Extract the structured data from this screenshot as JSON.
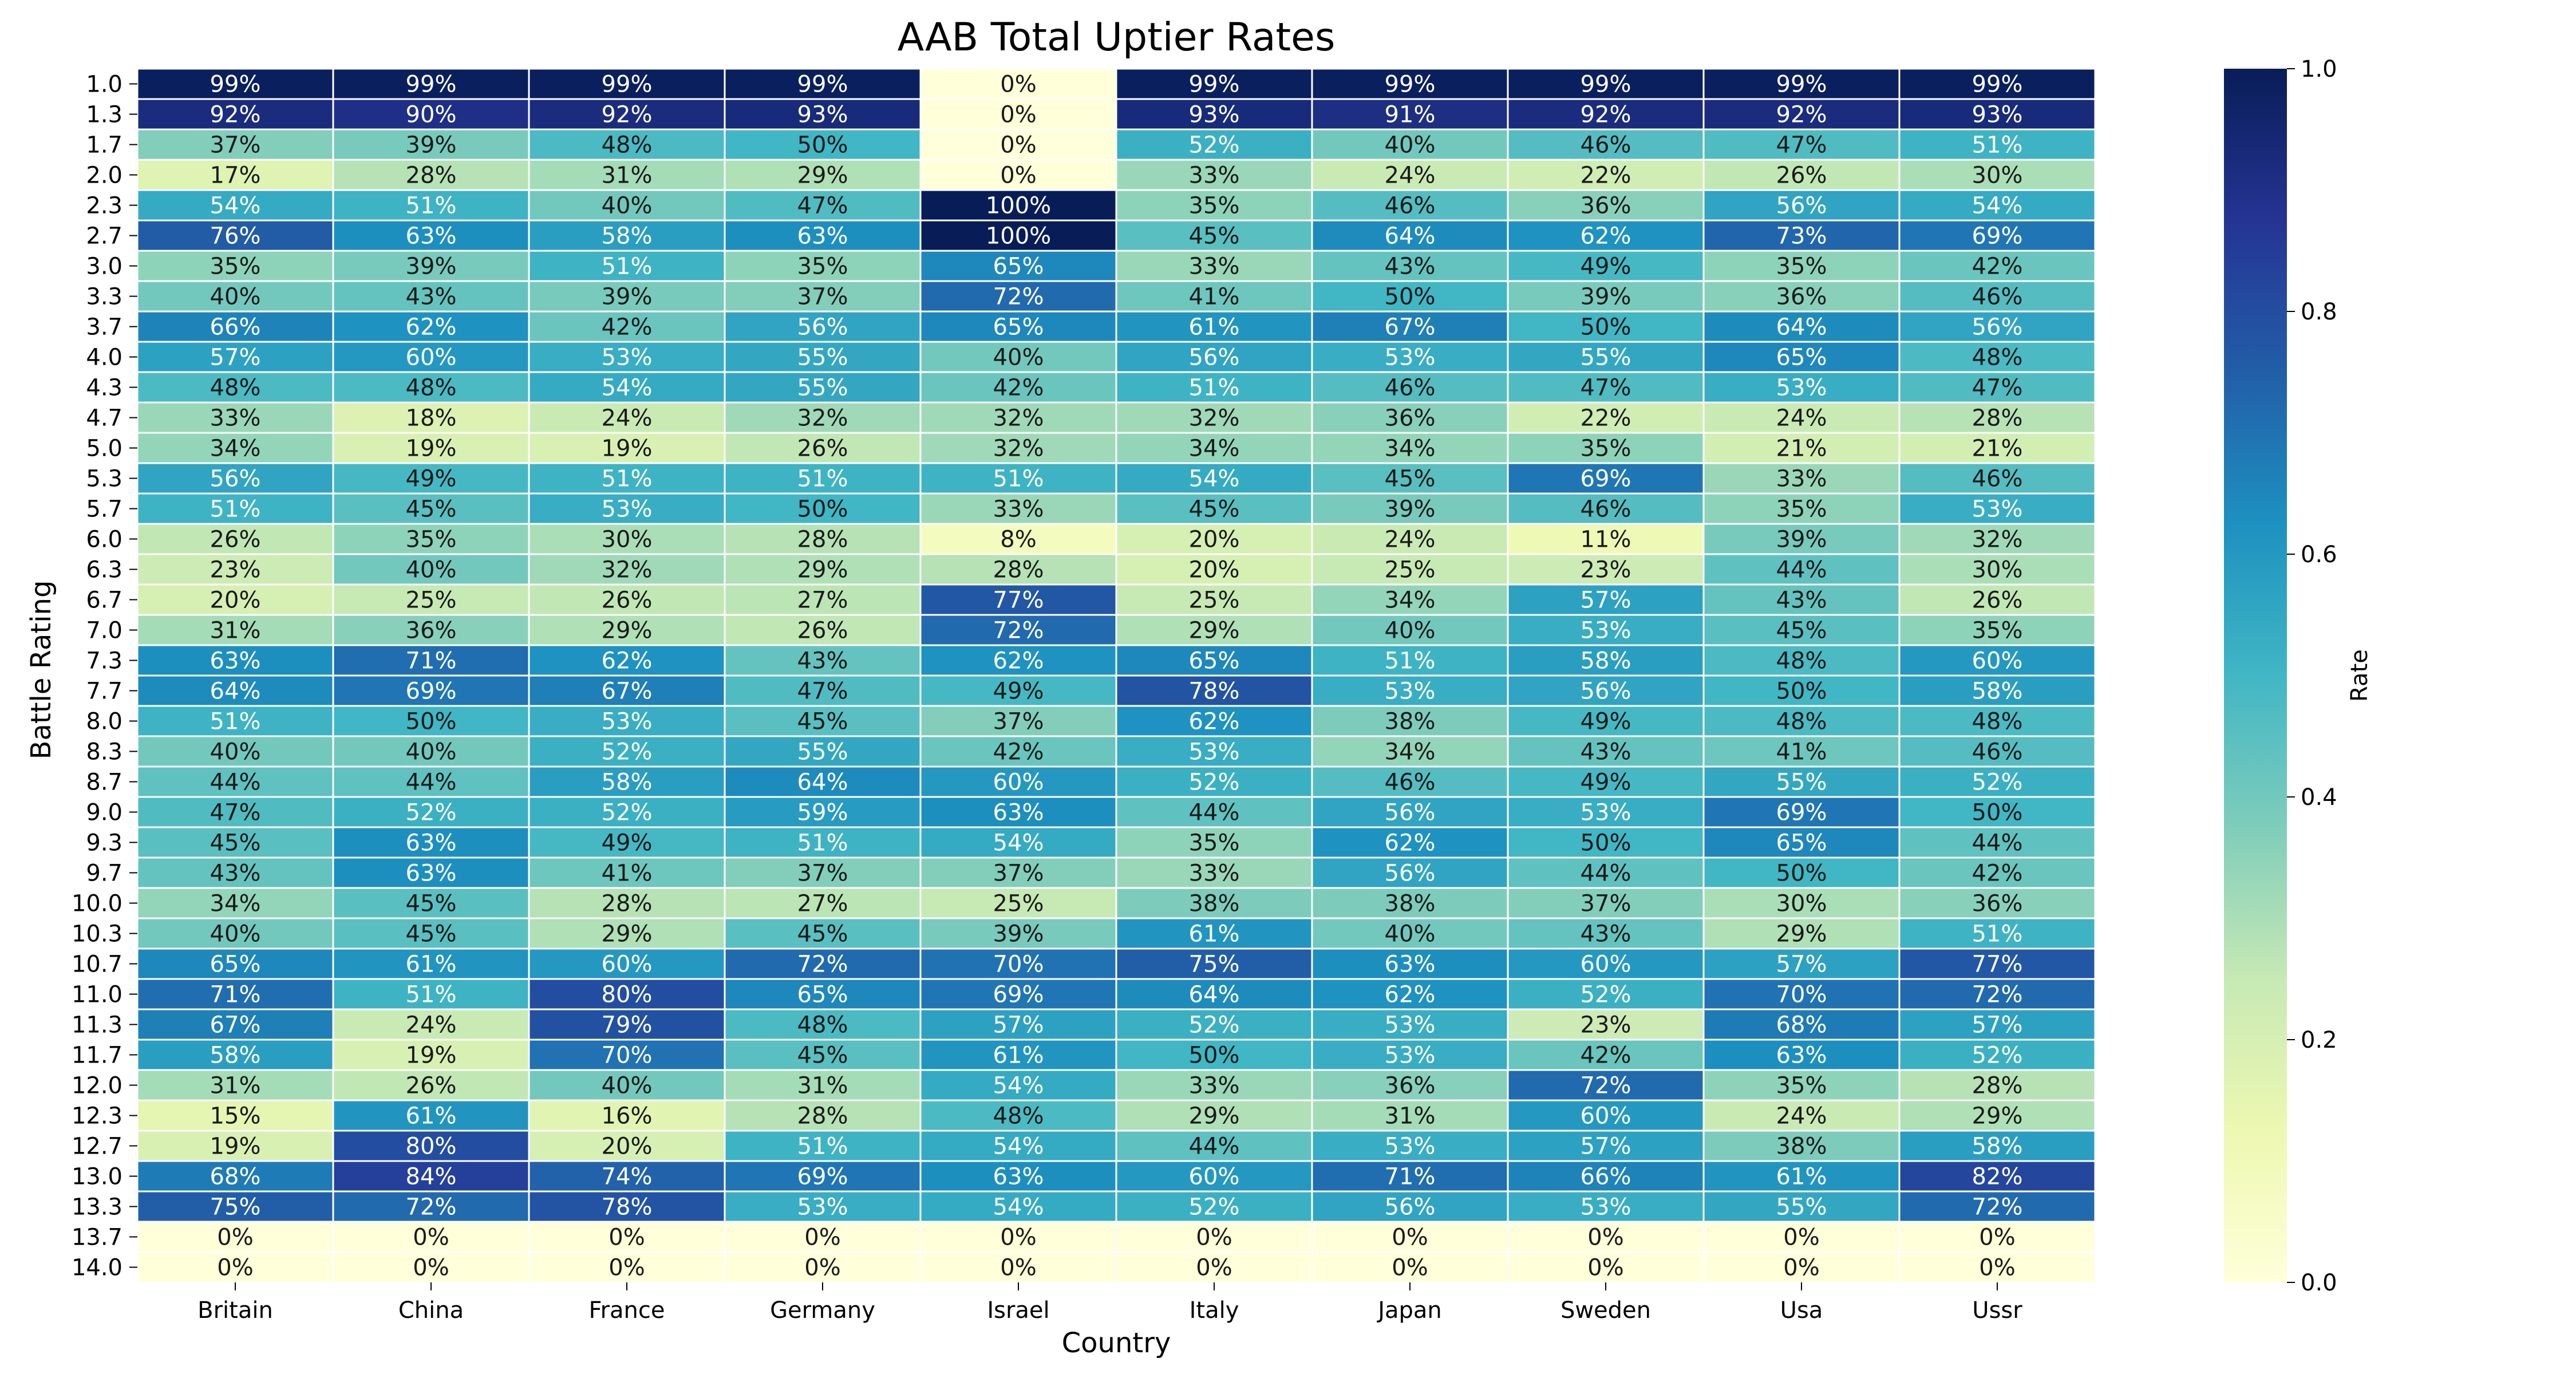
{
  "chart_data": {
    "type": "heatmap",
    "title": "AAB Total Uptier Rates",
    "xlabel": "Country",
    "ylabel": "Battle Rating",
    "colorbar_label": "Rate",
    "colorbar_range": [
      0.0,
      1.0
    ],
    "colorbar_ticks": [
      "0.0",
      "0.2",
      "0.4",
      "0.6",
      "0.8",
      "1.0"
    ],
    "colormap": "YlGnBu",
    "columns": [
      "Britain",
      "China",
      "France",
      "Germany",
      "Israel",
      "Italy",
      "Japan",
      "Sweden",
      "Usa",
      "Ussr"
    ],
    "rows": [
      "1.0",
      "1.3",
      "1.7",
      "2.0",
      "2.3",
      "2.7",
      "3.0",
      "3.3",
      "3.7",
      "4.0",
      "4.3",
      "4.7",
      "5.0",
      "5.3",
      "5.7",
      "6.0",
      "6.3",
      "6.7",
      "7.0",
      "7.3",
      "7.7",
      "8.0",
      "8.3",
      "8.7",
      "9.0",
      "9.3",
      "9.7",
      "10.0",
      "10.3",
      "10.7",
      "11.0",
      "11.3",
      "11.7",
      "12.0",
      "12.3",
      "12.7",
      "13.0",
      "13.3",
      "13.7",
      "14.0"
    ],
    "values": [
      [
        99,
        99,
        99,
        99,
        0,
        99,
        99,
        99,
        99,
        99
      ],
      [
        92,
        90,
        92,
        93,
        0,
        93,
        91,
        92,
        92,
        93
      ],
      [
        37,
        39,
        48,
        50,
        0,
        52,
        40,
        46,
        47,
        51
      ],
      [
        17,
        28,
        31,
        29,
        0,
        33,
        24,
        22,
        26,
        30
      ],
      [
        54,
        51,
        40,
        47,
        100,
        35,
        46,
        36,
        56,
        54
      ],
      [
        76,
        63,
        58,
        63,
        100,
        45,
        64,
        62,
        73,
        69
      ],
      [
        35,
        39,
        51,
        35,
        65,
        33,
        43,
        49,
        35,
        42
      ],
      [
        40,
        43,
        39,
        37,
        72,
        41,
        50,
        39,
        36,
        46
      ],
      [
        66,
        62,
        42,
        56,
        65,
        61,
        67,
        50,
        64,
        56
      ],
      [
        57,
        60,
        53,
        55,
        40,
        56,
        53,
        55,
        65,
        48
      ],
      [
        48,
        48,
        54,
        55,
        42,
        51,
        46,
        47,
        53,
        47
      ],
      [
        33,
        18,
        24,
        32,
        32,
        32,
        36,
        22,
        24,
        28
      ],
      [
        34,
        19,
        19,
        26,
        32,
        34,
        34,
        35,
        21,
        21
      ],
      [
        56,
        49,
        51,
        51,
        51,
        54,
        45,
        69,
        33,
        46
      ],
      [
        51,
        45,
        53,
        50,
        33,
        45,
        39,
        46,
        35,
        53
      ],
      [
        26,
        35,
        30,
        28,
        8,
        20,
        24,
        11,
        39,
        32
      ],
      [
        23,
        40,
        32,
        29,
        28,
        20,
        25,
        23,
        44,
        30
      ],
      [
        20,
        25,
        26,
        27,
        77,
        25,
        34,
        57,
        43,
        26
      ],
      [
        31,
        36,
        29,
        26,
        72,
        29,
        40,
        53,
        45,
        35
      ],
      [
        63,
        71,
        62,
        43,
        62,
        65,
        51,
        58,
        48,
        60
      ],
      [
        64,
        69,
        67,
        47,
        49,
        78,
        53,
        56,
        50,
        58
      ],
      [
        51,
        50,
        53,
        45,
        37,
        62,
        38,
        49,
        48,
        48
      ],
      [
        40,
        40,
        52,
        55,
        42,
        53,
        34,
        43,
        41,
        46
      ],
      [
        44,
        44,
        58,
        64,
        60,
        52,
        46,
        49,
        55,
        52
      ],
      [
        47,
        52,
        52,
        59,
        63,
        44,
        56,
        53,
        69,
        50
      ],
      [
        45,
        63,
        49,
        51,
        54,
        35,
        62,
        50,
        65,
        44
      ],
      [
        43,
        63,
        41,
        37,
        37,
        33,
        56,
        44,
        50,
        42
      ],
      [
        34,
        45,
        28,
        27,
        25,
        38,
        38,
        37,
        30,
        36
      ],
      [
        40,
        45,
        29,
        45,
        39,
        61,
        40,
        43,
        29,
        51
      ],
      [
        65,
        61,
        60,
        72,
        70,
        75,
        63,
        60,
        57,
        77
      ],
      [
        71,
        51,
        80,
        65,
        69,
        64,
        62,
        52,
        70,
        72
      ],
      [
        67,
        24,
        79,
        48,
        57,
        52,
        53,
        23,
        68,
        57
      ],
      [
        58,
        19,
        70,
        45,
        61,
        50,
        53,
        42,
        63,
        52
      ],
      [
        31,
        26,
        40,
        31,
        54,
        33,
        36,
        72,
        35,
        28
      ],
      [
        15,
        61,
        16,
        28,
        48,
        29,
        31,
        60,
        24,
        29
      ],
      [
        19,
        80,
        20,
        51,
        54,
        44,
        53,
        57,
        38,
        58
      ],
      [
        68,
        84,
        74,
        69,
        63,
        60,
        71,
        66,
        61,
        82
      ],
      [
        75,
        72,
        78,
        53,
        54,
        52,
        56,
        53,
        55,
        72
      ],
      [
        0,
        0,
        0,
        0,
        0,
        0,
        0,
        0,
        0,
        0
      ],
      [
        0,
        0,
        0,
        0,
        0,
        0,
        0,
        0,
        0,
        0
      ]
    ],
    "value_format": "percent",
    "grid": false,
    "legend": "colorbar-right"
  }
}
